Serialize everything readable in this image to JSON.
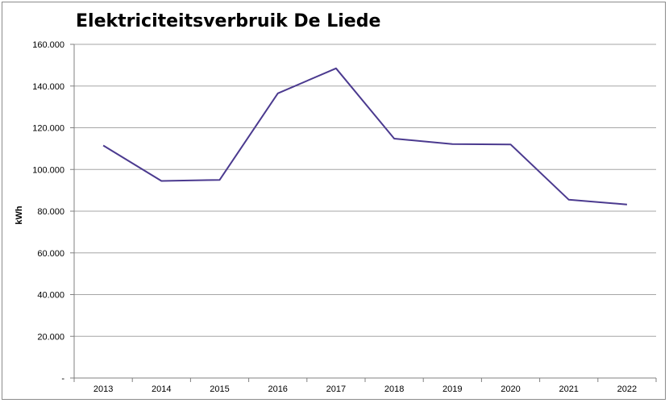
{
  "chart_data": {
    "type": "line",
    "title": "Elektriciteitsverbruik De Liede",
    "xlabel": "",
    "ylabel": "kWh",
    "ylim": [
      0,
      160000
    ],
    "yticks": [
      0,
      20000,
      40000,
      60000,
      80000,
      100000,
      120000,
      140000,
      160000
    ],
    "ytick_labels": [
      "-",
      "20.000",
      "40.000",
      "60.000",
      "80.000",
      "100.000",
      "120.000",
      "140.000",
      "160.000"
    ],
    "categories": [
      "2013",
      "2014",
      "2015",
      "2016",
      "2017",
      "2018",
      "2019",
      "2020",
      "2021",
      "2022"
    ],
    "series": [
      {
        "values": [
          111500,
          94500,
          95000,
          136500,
          148500,
          114800,
          112200,
          112000,
          85500,
          83200
        ],
        "color": "#4b3a8f"
      }
    ],
    "grid": true,
    "legend": "none"
  }
}
